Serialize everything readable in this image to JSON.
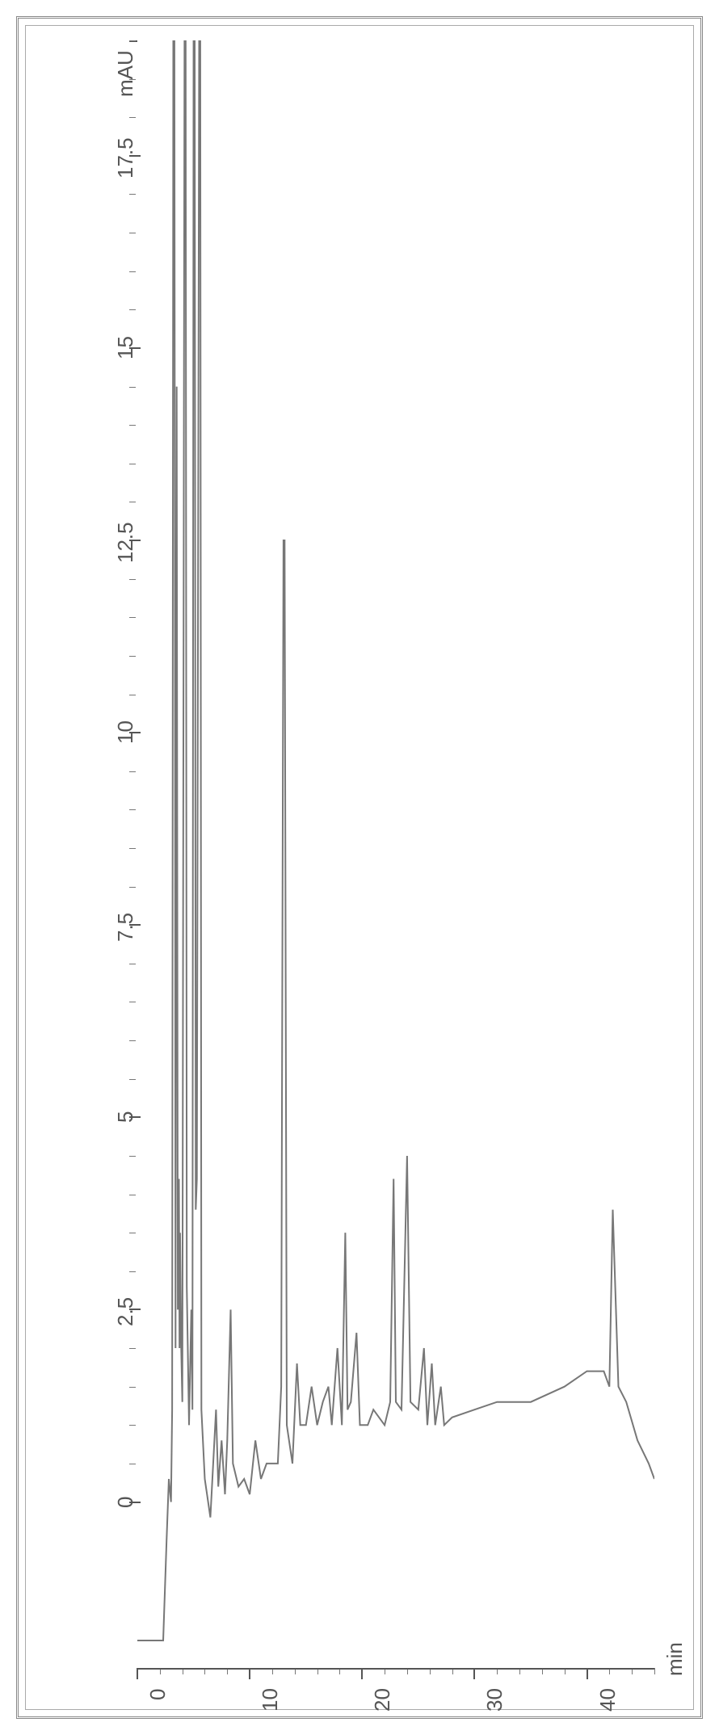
{
  "chromatogram": {
    "type": "line",
    "xlabel": "min",
    "ylabel": "mAU",
    "xlim": [
      0,
      46
    ],
    "ylim": [
      -2,
      19
    ],
    "x_major_ticks": [
      0,
      10,
      20,
      30,
      40
    ],
    "x_minor_tick_step": 2,
    "y_major_ticks": [
      0,
      2.5,
      5,
      7.5,
      10,
      12.5,
      15,
      17.5
    ],
    "y_minor_tick_step": 0.5,
    "line_color": "#777777",
    "line_width": 2,
    "axis_color": "#555555",
    "background_color": "#ffffff",
    "tick_fontsize": 26,
    "label_fontsize": 26,
    "frame_outer_color": "#888888",
    "frame_inner_color": "#aaaaaa",
    "series": [
      {
        "x": 0.0,
        "y": -1.8
      },
      {
        "x": 2.3,
        "y": -1.8
      },
      {
        "x": 2.6,
        "y": -0.5
      },
      {
        "x": 2.8,
        "y": 0.3
      },
      {
        "x": 3.0,
        "y": 0.0
      },
      {
        "x": 3.1,
        "y": 1.2
      },
      {
        "x": 3.2,
        "y": 19.0
      },
      {
        "x": 3.3,
        "y": 19.0
      },
      {
        "x": 3.4,
        "y": 2.0
      },
      {
        "x": 3.5,
        "y": 14.5
      },
      {
        "x": 3.6,
        "y": 2.5
      },
      {
        "x": 3.7,
        "y": 4.2
      },
      {
        "x": 3.75,
        "y": 2.0
      },
      {
        "x": 3.8,
        "y": 3.5
      },
      {
        "x": 3.9,
        "y": 2.0
      },
      {
        "x": 4.0,
        "y": 1.3
      },
      {
        "x": 4.2,
        "y": 19.0
      },
      {
        "x": 4.3,
        "y": 19.0
      },
      {
        "x": 4.4,
        "y": 2.8
      },
      {
        "x": 4.6,
        "y": 1.0
      },
      {
        "x": 4.8,
        "y": 2.5
      },
      {
        "x": 4.9,
        "y": 1.2
      },
      {
        "x": 5.0,
        "y": 19.0
      },
      {
        "x": 5.1,
        "y": 19.0
      },
      {
        "x": 5.2,
        "y": 3.8
      },
      {
        "x": 5.3,
        "y": 4.2
      },
      {
        "x": 5.5,
        "y": 19.0
      },
      {
        "x": 5.6,
        "y": 19.0
      },
      {
        "x": 5.7,
        "y": 1.2
      },
      {
        "x": 6.0,
        "y": 0.3
      },
      {
        "x": 6.5,
        "y": -0.2
      },
      {
        "x": 7.0,
        "y": 1.2
      },
      {
        "x": 7.2,
        "y": 0.2
      },
      {
        "x": 7.5,
        "y": 0.8
      },
      {
        "x": 7.8,
        "y": 0.1
      },
      {
        "x": 8.0,
        "y": 0.8
      },
      {
        "x": 8.3,
        "y": 2.5
      },
      {
        "x": 8.5,
        "y": 0.5
      },
      {
        "x": 9.0,
        "y": 0.2
      },
      {
        "x": 9.5,
        "y": 0.3
      },
      {
        "x": 10.0,
        "y": 0.1
      },
      {
        "x": 10.5,
        "y": 0.8
      },
      {
        "x": 11.0,
        "y": 0.3
      },
      {
        "x": 11.5,
        "y": 0.5
      },
      {
        "x": 12.5,
        "y": 0.5
      },
      {
        "x": 12.8,
        "y": 1.5
      },
      {
        "x": 13.0,
        "y": 12.5
      },
      {
        "x": 13.1,
        "y": 12.5
      },
      {
        "x": 13.3,
        "y": 1.0
      },
      {
        "x": 13.8,
        "y": 0.5
      },
      {
        "x": 14.2,
        "y": 1.8
      },
      {
        "x": 14.5,
        "y": 1.0
      },
      {
        "x": 15.0,
        "y": 1.0
      },
      {
        "x": 15.5,
        "y": 1.5
      },
      {
        "x": 16.0,
        "y": 1.0
      },
      {
        "x": 16.5,
        "y": 1.3
      },
      {
        "x": 17.0,
        "y": 1.5
      },
      {
        "x": 17.3,
        "y": 1.0
      },
      {
        "x": 17.8,
        "y": 2.0
      },
      {
        "x": 18.2,
        "y": 1.0
      },
      {
        "x": 18.5,
        "y": 3.5
      },
      {
        "x": 18.7,
        "y": 1.2
      },
      {
        "x": 19.0,
        "y": 1.3
      },
      {
        "x": 19.5,
        "y": 2.2
      },
      {
        "x": 19.8,
        "y": 1.0
      },
      {
        "x": 20.5,
        "y": 1.0
      },
      {
        "x": 21.0,
        "y": 1.2
      },
      {
        "x": 22.0,
        "y": 1.0
      },
      {
        "x": 22.5,
        "y": 1.3
      },
      {
        "x": 22.8,
        "y": 4.2
      },
      {
        "x": 23.0,
        "y": 1.3
      },
      {
        "x": 23.5,
        "y": 1.2
      },
      {
        "x": 24.0,
        "y": 4.5
      },
      {
        "x": 24.3,
        "y": 1.3
      },
      {
        "x": 25.0,
        "y": 1.2
      },
      {
        "x": 25.5,
        "y": 2.0
      },
      {
        "x": 25.8,
        "y": 1.0
      },
      {
        "x": 26.2,
        "y": 1.8
      },
      {
        "x": 26.5,
        "y": 1.0
      },
      {
        "x": 27.0,
        "y": 1.5
      },
      {
        "x": 27.3,
        "y": 1.0
      },
      {
        "x": 28.0,
        "y": 1.1
      },
      {
        "x": 30.0,
        "y": 1.2
      },
      {
        "x": 32.0,
        "y": 1.3
      },
      {
        "x": 35.0,
        "y": 1.3
      },
      {
        "x": 38.0,
        "y": 1.5
      },
      {
        "x": 40.0,
        "y": 1.7
      },
      {
        "x": 41.5,
        "y": 1.7
      },
      {
        "x": 42.0,
        "y": 1.5
      },
      {
        "x": 42.3,
        "y": 3.8
      },
      {
        "x": 42.8,
        "y": 1.5
      },
      {
        "x": 43.5,
        "y": 1.3
      },
      {
        "x": 44.5,
        "y": 0.8
      },
      {
        "x": 45.5,
        "y": 0.5
      },
      {
        "x": 46.0,
        "y": 0.3
      }
    ]
  }
}
